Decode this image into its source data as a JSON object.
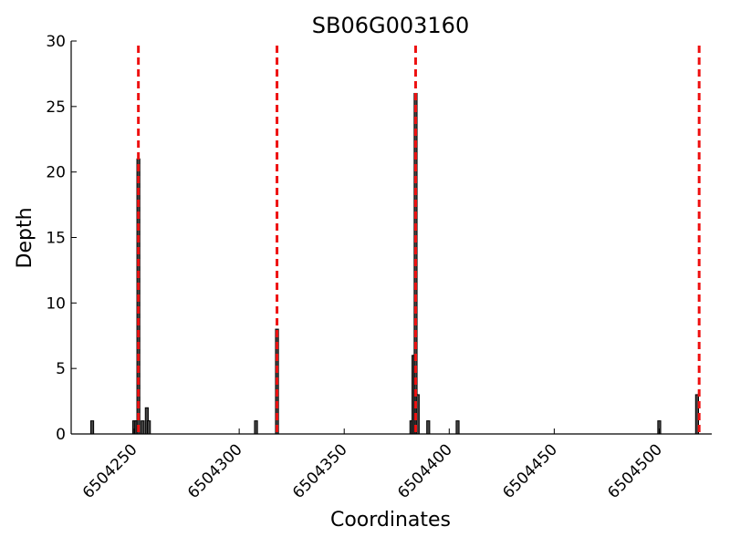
{
  "chart_data": {
    "type": "bar",
    "title": "SB06G003160",
    "xlabel": "Coordinates",
    "ylabel": "Depth",
    "xlim": [
      6504220,
      6504525
    ],
    "ylim": [
      0,
      30
    ],
    "xticks": [
      6504250,
      6504300,
      6504350,
      6504400,
      6504450,
      6504500
    ],
    "yticks": [
      0,
      5,
      10,
      15,
      20,
      25,
      30
    ],
    "grid": false,
    "bar_color": "#222222",
    "marker_color": "#ee1111",
    "bars": [
      {
        "x": 6504230,
        "depth": 1
      },
      {
        "x": 6504250,
        "depth": 1
      },
      {
        "x": 6504251,
        "depth": 1
      },
      {
        "x": 6504252,
        "depth": 21
      },
      {
        "x": 6504254,
        "depth": 1
      },
      {
        "x": 6504256,
        "depth": 2
      },
      {
        "x": 6504257,
        "depth": 1
      },
      {
        "x": 6504308,
        "depth": 1
      },
      {
        "x": 6504318,
        "depth": 8
      },
      {
        "x": 6504382,
        "depth": 1
      },
      {
        "x": 6504383,
        "depth": 6
      },
      {
        "x": 6504384,
        "depth": 26
      },
      {
        "x": 6504385,
        "depth": 3
      },
      {
        "x": 6504390,
        "depth": 1
      },
      {
        "x": 6504404,
        "depth": 1
      },
      {
        "x": 6504500,
        "depth": 1
      },
      {
        "x": 6504518,
        "depth": 3
      }
    ],
    "marker_lines": [
      6504252,
      6504318,
      6504384,
      6504519
    ]
  }
}
